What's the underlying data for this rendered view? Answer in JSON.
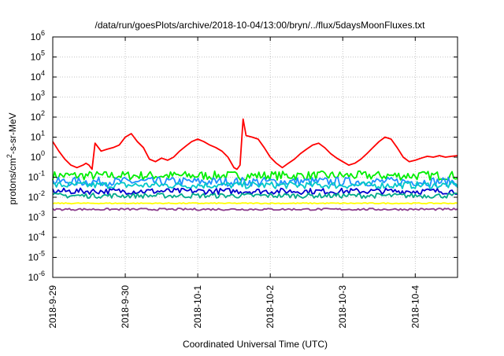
{
  "chart_data": {
    "type": "line",
    "title": "/data/run/goesPlots/archive/2018-10-04/13:00/bryn/../flux/5daysMoonFluxes.txt",
    "xlabel": "Coordinated Universal Time (UTC)",
    "ylabel": {
      "prefix": "protons/cm",
      "sup": "2",
      "suffix": "-s-sr-MeV"
    },
    "y_scale": "log",
    "ylim": [
      1e-06,
      1000000.0
    ],
    "y_ticks": [
      {
        "value": 1e-06,
        "base": "10",
        "exp": "-6"
      },
      {
        "value": 1e-05,
        "base": "10",
        "exp": "-5"
      },
      {
        "value": 0.0001,
        "base": "10",
        "exp": "-4"
      },
      {
        "value": 0.001,
        "base": "10",
        "exp": "-3"
      },
      {
        "value": 0.01,
        "base": "10",
        "exp": "-2"
      },
      {
        "value": 0.1,
        "base": "10",
        "exp": "-1"
      },
      {
        "value": 1,
        "base": "10",
        "exp": "0"
      },
      {
        "value": 10.0,
        "base": "10",
        "exp": "1"
      },
      {
        "value": 100.0,
        "base": "10",
        "exp": "2"
      },
      {
        "value": 1000.0,
        "base": "10",
        "exp": "3"
      },
      {
        "value": 10000.0,
        "base": "10",
        "exp": "4"
      },
      {
        "value": 100000.0,
        "base": "10",
        "exp": "5"
      },
      {
        "value": 1000000.0,
        "base": "10",
        "exp": "6"
      }
    ],
    "xlim": [
      "2018-09-29T00:00",
      "2018-10-04T14:00"
    ],
    "x_ticks": [
      "2018-9-29",
      "2018-9-30",
      "2018-10-1",
      "2018-10-2",
      "2018-10-3",
      "2018-10-4"
    ],
    "x_tick_dates": [
      "2018-09-29T00:00",
      "2018-09-30T00:00",
      "2018-10-01T00:00",
      "2018-10-02T00:00",
      "2018-10-03T00:00",
      "2018-10-04T00:00"
    ],
    "grid": true,
    "legend": "none",
    "series": [
      {
        "color": "#ff0000",
        "x": [
          "2018-09-29T00:00",
          "2018-09-29T02:00",
          "2018-09-29T04:00",
          "2018-09-29T06:00",
          "2018-09-29T08:00",
          "2018-09-29T10:00",
          "2018-09-29T11:00",
          "2018-09-29T12:00",
          "2018-09-29T13:00",
          "2018-09-29T14:00",
          "2018-09-29T16:00",
          "2018-09-29T18:00",
          "2018-09-29T20:00",
          "2018-09-29T22:00",
          "2018-09-30T00:00",
          "2018-09-30T02:00",
          "2018-09-30T04:00",
          "2018-09-30T06:00",
          "2018-09-30T08:00",
          "2018-09-30T10:00",
          "2018-09-30T12:00",
          "2018-09-30T14:00",
          "2018-09-30T16:00",
          "2018-09-30T18:00",
          "2018-09-30T20:00",
          "2018-09-30T22:00",
          "2018-10-01T00:00",
          "2018-10-01T02:00",
          "2018-10-01T04:00",
          "2018-10-01T06:00",
          "2018-10-01T08:00",
          "2018-10-01T10:00",
          "2018-10-01T12:00",
          "2018-10-01T13:00",
          "2018-10-01T14:00",
          "2018-10-01T15:00",
          "2018-10-01T16:00",
          "2018-10-01T18:00",
          "2018-10-01T20:00",
          "2018-10-01T22:00",
          "2018-10-02T00:00",
          "2018-10-02T02:00",
          "2018-10-02T04:00",
          "2018-10-02T06:00",
          "2018-10-02T08:00",
          "2018-10-02T10:00",
          "2018-10-02T12:00",
          "2018-10-02T14:00",
          "2018-10-02T16:00",
          "2018-10-02T18:00",
          "2018-10-02T20:00",
          "2018-10-02T22:00",
          "2018-10-03T00:00",
          "2018-10-03T02:00",
          "2018-10-03T04:00",
          "2018-10-03T06:00",
          "2018-10-03T08:00",
          "2018-10-03T10:00",
          "2018-10-03T12:00",
          "2018-10-03T14:00",
          "2018-10-03T16:00",
          "2018-10-03T18:00",
          "2018-10-03T20:00",
          "2018-10-03T22:00",
          "2018-10-04T00:00",
          "2018-10-04T02:00",
          "2018-10-04T04:00",
          "2018-10-04T06:00",
          "2018-10-04T08:00",
          "2018-10-04T10:00",
          "2018-10-04T12:00",
          "2018-10-04T14:00"
        ],
        "values": [
          6,
          2,
          0.8,
          0.4,
          0.3,
          0.4,
          0.5,
          0.4,
          0.25,
          5,
          2,
          2.5,
          3,
          4,
          10,
          15,
          6,
          3,
          0.8,
          0.6,
          0.9,
          0.7,
          1,
          2,
          3.5,
          6,
          8,
          6,
          4,
          3,
          2,
          1,
          0.3,
          0.25,
          0.4,
          80,
          12,
          10,
          8,
          3,
          1,
          0.5,
          0.3,
          0.5,
          0.8,
          1.5,
          2.5,
          4,
          5,
          3,
          1.5,
          0.9,
          0.6,
          0.4,
          0.5,
          0.8,
          1.5,
          3,
          6,
          10,
          8,
          3,
          1,
          0.6,
          0.7,
          0.9,
          1.1,
          1.0,
          1.2,
          1.0,
          1.1,
          1.2
        ]
      },
      {
        "color": "#00ee00",
        "x": [
          "2018-09-29T00:00",
          "2018-10-04T14:00"
        ],
        "values": [
          0.12,
          0.12
        ],
        "noise": 0.45
      },
      {
        "color": "#1e90ff",
        "x": [
          "2018-09-29T00:00",
          "2018-10-04T14:00"
        ],
        "values": [
          0.06,
          0.06
        ],
        "noise": 0.45
      },
      {
        "color": "#00c8c8",
        "x": [
          "2018-09-29T00:00",
          "2018-10-04T14:00"
        ],
        "values": [
          0.04,
          0.04
        ],
        "noise": 0.35
      },
      {
        "color": "#0000cd",
        "x": [
          "2018-09-29T00:00",
          "2018-10-04T14:00"
        ],
        "values": [
          0.02,
          0.02
        ],
        "noise": 0.3
      },
      {
        "color": "#00aa88",
        "x": [
          "2018-09-29T00:00",
          "2018-10-04T14:00"
        ],
        "values": [
          0.012,
          0.012
        ],
        "noise": 0.25
      },
      {
        "color": "#ffff00",
        "x": [
          "2018-09-29T00:00",
          "2018-10-04T14:00"
        ],
        "values": [
          0.005,
          0.005
        ],
        "noise": 0.05
      },
      {
        "color": "#8b3a8b",
        "x": [
          "2018-09-29T00:00",
          "2018-10-04T14:00"
        ],
        "values": [
          0.0025,
          0.0025
        ],
        "noise": 0.1
      }
    ]
  }
}
